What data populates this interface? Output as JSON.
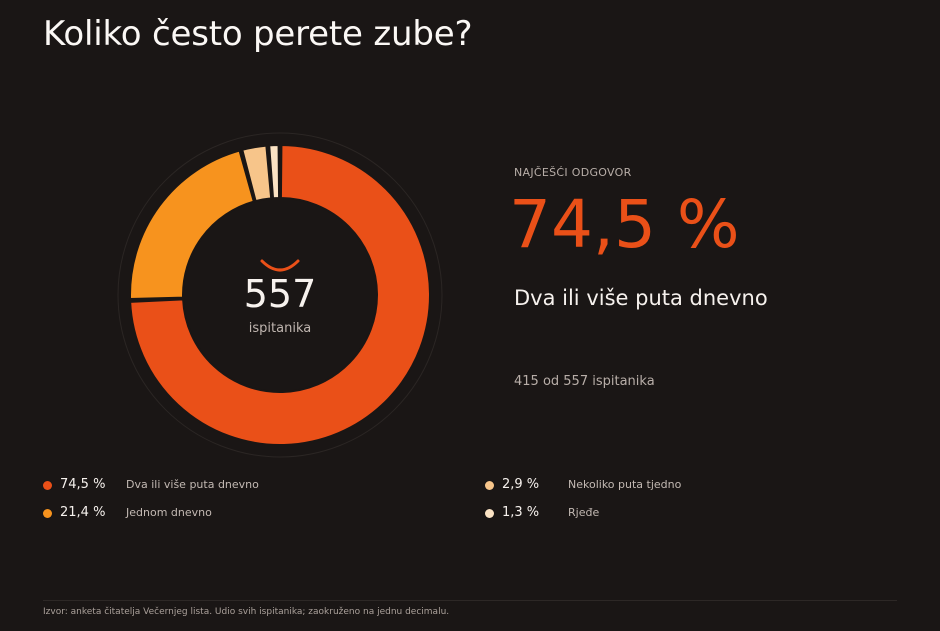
{
  "title": "Koliko često perete zube?",
  "center": {
    "count": "557",
    "label": "ispitanika"
  },
  "highlight": {
    "kicker": "NAJČEŠĆI ODGOVOR",
    "percent": "74,5 %",
    "label": "Dva ili više puta dnevno",
    "count_text": "415 od 557 ispitanika"
  },
  "chart_data": {
    "type": "pie",
    "donut": true,
    "categories": [
      "Dva ili više puta dnevno",
      "Jednom dnevno",
      "Nekoliko puta tjedno",
      "Rjeđe"
    ],
    "values": [
      74.5,
      21.4,
      2.9,
      1.3
    ],
    "value_labels": [
      "74,5 %",
      "21,4 %",
      "2,9 %",
      "1,3 %"
    ],
    "colors": [
      "#ea5018",
      "#f7931e",
      "#f7c58a",
      "#fbe3c4"
    ],
    "total_respondents": 557,
    "legend_placement": "bottom"
  },
  "footer": "Izvor: anketa čitatelja Večernjeg lista. Udio svih ispitanika; zaokruženo na jednu decimalu."
}
